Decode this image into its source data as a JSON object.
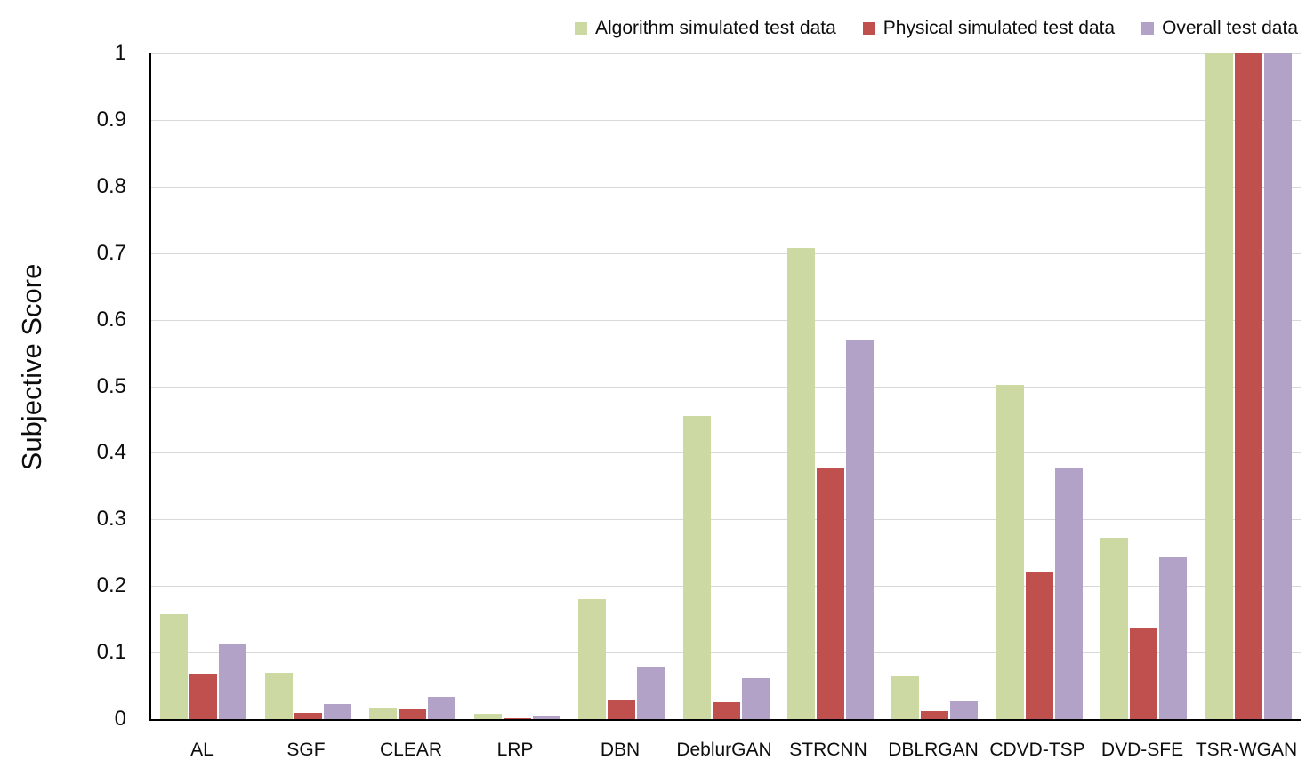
{
  "chart_data": {
    "type": "bar",
    "title": "",
    "xlabel": "",
    "ylabel": "Subjective Score",
    "ylim": [
      0,
      1
    ],
    "ytick_step": 0.1,
    "ytick_labels": [
      "0",
      "0.1",
      "0.2",
      "0.3",
      "0.4",
      "0.5",
      "0.6",
      "0.7",
      "0.8",
      "0.9",
      "1"
    ],
    "grid": "horizontal",
    "legend_position": "top-right",
    "categories": [
      "AL",
      "SGF",
      "CLEAR",
      "LRP",
      "DBN",
      "DeblurGAN",
      "STRCNN",
      "DBLRGAN",
      "CDVD-TSP",
      "DVD-SFE",
      "TSR-WGAN"
    ],
    "series": [
      {
        "name": "Algorithm simulated test data",
        "color": "#ccd9a2",
        "values": [
          0.158,
          0.07,
          0.016,
          0.008,
          0.18,
          0.455,
          0.707,
          0.065,
          0.502,
          0.272,
          1.0
        ]
      },
      {
        "name": "Physical simulated test data",
        "color": "#c0504d",
        "values": [
          0.068,
          0.009,
          0.015,
          0.002,
          0.03,
          0.026,
          0.378,
          0.012,
          0.22,
          0.136,
          1.0
        ]
      },
      {
        "name": "Overall test data",
        "color": "#b2a2c7",
        "values": [
          0.114,
          0.023,
          0.034,
          0.005,
          0.079,
          0.061,
          0.569,
          0.027,
          0.377,
          0.243,
          1.0
        ]
      }
    ],
    "colors": {
      "gridline": "#d9d9d9",
      "axis": "#000000",
      "text": "#0d0d0d",
      "background": "#ffffff"
    }
  }
}
